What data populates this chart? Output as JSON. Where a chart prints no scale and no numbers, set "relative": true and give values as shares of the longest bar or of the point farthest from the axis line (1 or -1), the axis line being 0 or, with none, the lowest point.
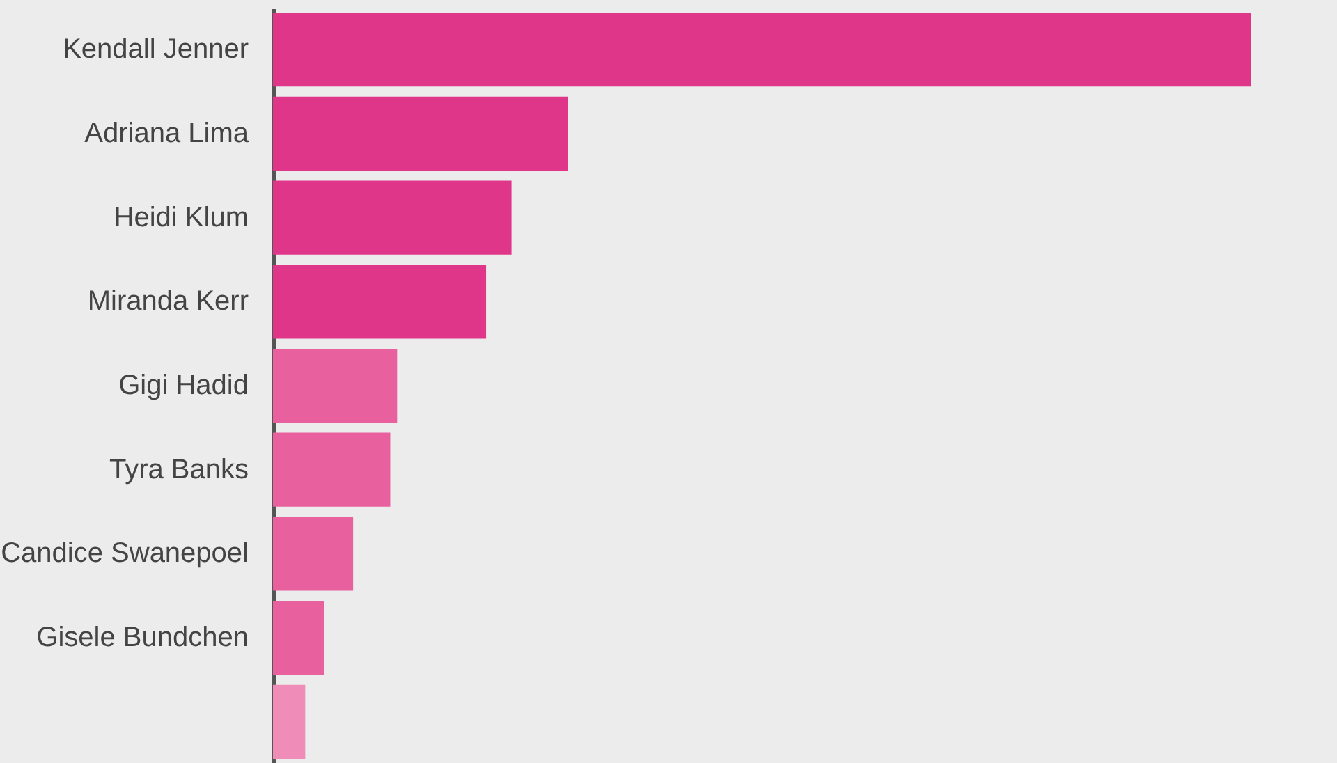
{
  "chart_data": {
    "type": "bar",
    "orientation": "horizontal",
    "relative": true,
    "categories": [
      "Kendall Jenner",
      "Adriana Lima",
      "Heidi Klum",
      "Miranda Kerr",
      "Gigi Hadid",
      "Tyra Banks",
      "Candice Swanepoel",
      "Gisele Bundchen",
      null
    ],
    "values": [
      1,
      0.302,
      0.244,
      0.218,
      0.127,
      0.12,
      0.082,
      0.052,
      0.033
    ],
    "colors": [
      "#e0368a",
      "#e0368a",
      "#e0368a",
      "#e0368a",
      "#e8609e",
      "#e8609e",
      "#e8609e",
      "#e8609e",
      "#f08cb8"
    ]
  }
}
